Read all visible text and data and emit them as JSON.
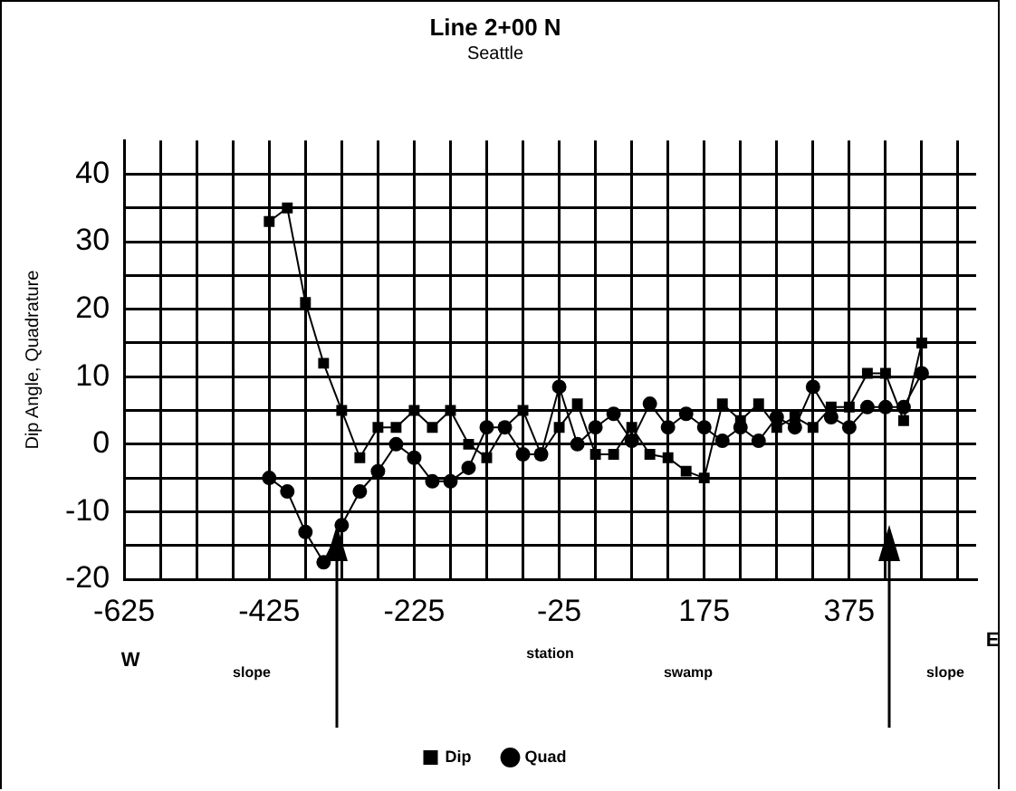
{
  "chart_data": {
    "type": "line",
    "title": "Line 2+00 N",
    "subtitle": "Seattle",
    "xlabel": "station",
    "ylabel": "Dip Angle, Quadrature",
    "x": [
      -425,
      -400,
      -375,
      -350,
      -325,
      -300,
      -275,
      -250,
      -225,
      -200,
      -175,
      -150,
      -125,
      -100,
      -75,
      -50,
      -25,
      0,
      25,
      50,
      75,
      100,
      125,
      150,
      175,
      200,
      225,
      250,
      275,
      300,
      325,
      350,
      375,
      400,
      425,
      450,
      475
    ],
    "series": [
      {
        "name": "Dip",
        "color": "#000000",
        "marker": "square",
        "values": [
          33,
          35,
          21,
          12,
          5,
          -2,
          2.5,
          2.5,
          5,
          2.5,
          5,
          0,
          -2,
          2.5,
          5,
          -1.5,
          2.5,
          6,
          -1.5,
          -1.5,
          2.5,
          -1.5,
          -2,
          -4,
          -5,
          6,
          3.5,
          6,
          2.5,
          4,
          2.5,
          5.5,
          5.5,
          10.5,
          10.5,
          3.5,
          15
        ]
      },
      {
        "name": "Quad",
        "color": "#000000",
        "marker": "circle",
        "values": [
          -5,
          -7,
          -13,
          -17.5,
          -12,
          -7,
          -4,
          0,
          -2,
          -5.5,
          -5.5,
          -3.5,
          2.5,
          2.5,
          -1.5,
          -1.5,
          8.5,
          0,
          2.5,
          4.5,
          0.5,
          6,
          2.5,
          4.5,
          2.5,
          0.5,
          2.5,
          0.5,
          4,
          2.5,
          8.5,
          4,
          2.5,
          5.5,
          5.5,
          5.5,
          10.5
        ]
      }
    ],
    "xlim": [
      -625,
      550
    ],
    "xticks": [
      -625,
      {
        "value": -575,
        "label": null
      },
      {
        "value": -525,
        "label": null
      },
      {
        "value": -475,
        "label": null
      },
      -425,
      {
        "value": -375,
        "label": null
      },
      {
        "value": -325,
        "label": null
      },
      {
        "value": -275,
        "label": null
      },
      -225,
      {
        "value": -175,
        "label": null
      },
      {
        "value": -125,
        "label": null
      },
      {
        "value": -75,
        "label": null
      },
      -25,
      {
        "value": 25,
        "label": null
      },
      {
        "value": 75,
        "label": null
      },
      {
        "value": 125,
        "label": null
      },
      175,
      {
        "value": 225,
        "label": null
      },
      {
        "value": 275,
        "label": null
      },
      {
        "value": 325,
        "label": null
      },
      375,
      {
        "value": 425,
        "label": null
      },
      {
        "value": 475,
        "label": null
      },
      {
        "value": 525,
        "label": null
      }
    ],
    "ylim": [
      -20,
      45
    ],
    "yticks": [
      -20,
      {
        "value": -15,
        "label": null
      },
      -10,
      {
        "value": -5,
        "label": null
      },
      0,
      {
        "value": 5,
        "label": null
      },
      10,
      {
        "value": 15,
        "label": null
      },
      20,
      {
        "value": 25,
        "label": null
      },
      30,
      {
        "value": 35,
        "label": null
      },
      40
    ],
    "grid": true,
    "legend": "bottom",
    "annotations": [
      "W",
      "slope",
      "swamp",
      "slope",
      "E"
    ]
  }
}
